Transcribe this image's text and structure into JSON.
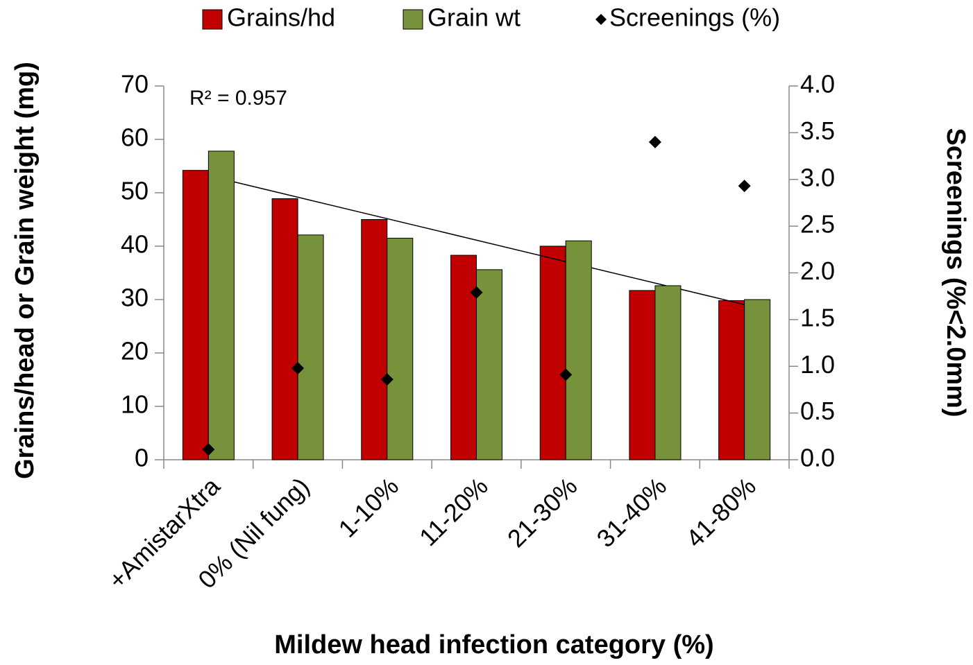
{
  "chart_data": {
    "type": "bar",
    "categories": [
      "+AmistarXtra",
      "0% (Nil fung)",
      "1-10%",
      "11-20%",
      "21-30%",
      "31-40%",
      "41-80%"
    ],
    "series": [
      {
        "name": "Grains/hd",
        "color": "#c00000",
        "values": [
          54.2,
          48.9,
          45,
          38.3,
          40,
          31.7,
          29.8
        ],
        "trendline": "linear"
      },
      {
        "name": "Grain wt",
        "color": "#76933c",
        "values": [
          57.8,
          42.1,
          41.5,
          35.6,
          41,
          32.6,
          30
        ]
      },
      {
        "name": "Screenings (%)",
        "color": "#000000",
        "type": "scatter",
        "axis": "y2",
        "values": [
          0.11,
          0.98,
          0.86,
          1.79,
          0.91,
          3.4,
          2.93
        ]
      }
    ],
    "xlabel": "Mildew head infection category (%)",
    "ylabel": "Grains/head or Grain weight (mg)",
    "y2label": "Screenings (%<2.0mm)",
    "annotation": "R² = 0.957",
    "ylim": [
      0,
      70
    ],
    "yticks": [
      0,
      10,
      20,
      30,
      40,
      50,
      60,
      70
    ],
    "y2lim": [
      0,
      4
    ],
    "y2ticks": [
      {
        "value": 0,
        "label": "0.0"
      },
      {
        "value": 0.5,
        "label": "0.5"
      },
      {
        "value": 1,
        "label": "1.0"
      },
      {
        "value": 1.5,
        "label": "1.5"
      },
      {
        "value": 2,
        "label": "2.0"
      },
      {
        "value": 2.5,
        "label": "2.5"
      },
      {
        "value": 3,
        "label": "3.0"
      },
      {
        "value": 3.5,
        "label": "3.5"
      },
      {
        "value": 4,
        "label": "4.0"
      }
    ],
    "grid": false,
    "legend": "top"
  }
}
